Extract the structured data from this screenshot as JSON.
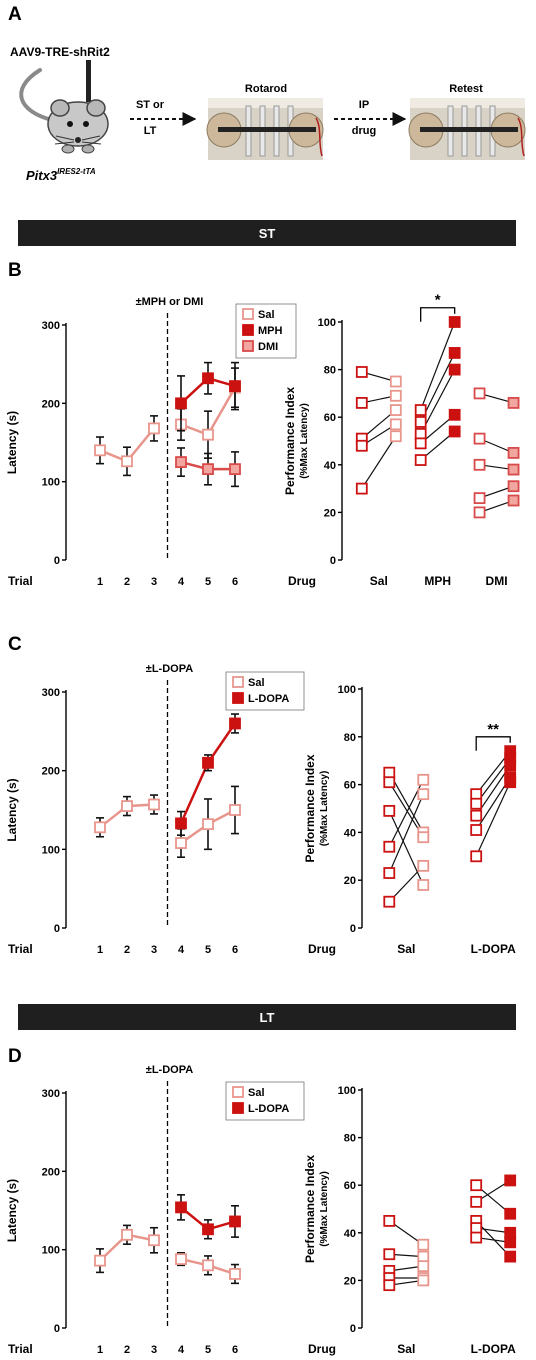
{
  "colors": {
    "sal": "#e8958c",
    "mph": "#cc1111",
    "dmi": "#d94a4a",
    "ldopa": "#cc1111",
    "bar": "#1f1f1f",
    "line": "#000000"
  },
  "panelA": {
    "letter": "A",
    "virus": "AAV9-TRE-shRit2",
    "mouse_line_main": "Pitx3",
    "mouse_line_sup": "IRES2-tTA",
    "arrow1_top": "ST or",
    "arrow1_bottom": "LT",
    "rotarod": "Rotarod",
    "arrow2_top": "IP",
    "arrow2_bottom": "drug",
    "retest": "Retest"
  },
  "bars": {
    "st": "ST",
    "lt": "LT"
  },
  "panels": [
    {
      "letter": "B",
      "latency": {
        "title": "±MPH or DMI",
        "ylabel": "Latency (s)",
        "xlabel": "Trial",
        "yticks": [
          "0",
          "100",
          "200",
          "300"
        ],
        "xticks": [
          "1",
          "2",
          "3",
          "4",
          "5",
          "6"
        ],
        "legend": [
          {
            "key": "sal",
            "label": "Sal",
            "fill": "open"
          },
          {
            "key": "mph",
            "label": "MPH",
            "fill": "solid"
          },
          {
            "key": "dmi",
            "label": "DMI",
            "fill": "light"
          }
        ]
      },
      "pi": {
        "ylabel1": "Performance Index",
        "ylabel2": "(%Max Latency)",
        "xlabel": "Drug",
        "yticks": [
          "0",
          "20",
          "40",
          "60",
          "80",
          "100"
        ],
        "groups": [
          "Sal",
          "MPH",
          "DMI"
        ],
        "sig": "*"
      }
    },
    {
      "letter": "C",
      "latency": {
        "title": "±L-DOPA",
        "ylabel": "Latency (s)",
        "xlabel": "Trial",
        "yticks": [
          "0",
          "100",
          "200",
          "300"
        ],
        "xticks": [
          "1",
          "2",
          "3",
          "4",
          "5",
          "6"
        ],
        "legend": [
          {
            "key": "sal",
            "label": "Sal",
            "fill": "open"
          },
          {
            "key": "ldopa",
            "label": "L-DOPA",
            "fill": "solid"
          }
        ]
      },
      "pi": {
        "ylabel1": "Performance Index",
        "ylabel2": "(%Max Latency)",
        "xlabel": "Drug",
        "yticks": [
          "0",
          "20",
          "40",
          "60",
          "80",
          "100"
        ],
        "groups": [
          "Sal",
          "L-DOPA"
        ],
        "sig": "**"
      }
    },
    {
      "letter": "D",
      "latency": {
        "title": "±L-DOPA",
        "ylabel": "Latency (s)",
        "xlabel": "Trial",
        "yticks": [
          "0",
          "100",
          "200",
          "300"
        ],
        "xticks": [
          "1",
          "2",
          "3",
          "4",
          "5",
          "6"
        ],
        "legend": [
          {
            "key": "sal",
            "label": "Sal",
            "fill": "open"
          },
          {
            "key": "ldopa",
            "label": "L-DOPA",
            "fill": "solid"
          }
        ]
      },
      "pi": {
        "ylabel1": "Performance Index",
        "ylabel2": "(%Max Latency)",
        "xlabel": "Drug",
        "yticks": [
          "0",
          "20",
          "40",
          "60",
          "80",
          "100"
        ],
        "groups": [
          "Sal",
          "L-DOPA"
        ],
        "sig": ""
      }
    }
  ],
  "chart_data": [
    {
      "type": "line",
      "panel": "B",
      "title": "±MPH or DMI",
      "xlabel": "Trial",
      "ylabel": "Latency (s)",
      "ylim": [
        0,
        300
      ],
      "x": [
        1,
        2,
        3,
        4,
        5,
        6
      ],
      "pre_test": {
        "x": [
          1,
          2,
          3
        ],
        "y": [
          140,
          126,
          168
        ],
        "err": [
          17,
          18,
          16
        ]
      },
      "series": [
        {
          "name": "Sal",
          "key": "sal",
          "x": [
            4,
            5,
            6
          ],
          "y": [
            173,
            160,
            220
          ],
          "err": [
            20,
            30,
            25
          ]
        },
        {
          "name": "MPH",
          "key": "mph",
          "x": [
            4,
            5,
            6
          ],
          "y": [
            200,
            232,
            222
          ],
          "err": [
            35,
            20,
            30
          ]
        },
        {
          "name": "DMI",
          "key": "dmi",
          "x": [
            4,
            5,
            6
          ],
          "y": [
            125,
            116,
            116
          ],
          "err": [
            18,
            20,
            22
          ]
        }
      ]
    },
    {
      "type": "scatter",
      "panel": "B",
      "xlabel": "Drug",
      "ylabel": "Performance Index (%Max Latency)",
      "ylim": [
        0,
        100
      ],
      "categories": [
        "Sal",
        "MPH",
        "DMI"
      ],
      "paired": [
        {
          "name": "Sal",
          "key": "sal",
          "pre": [
            79,
            66,
            51,
            48,
            30
          ],
          "post": [
            75,
            69,
            63,
            57,
            52
          ]
        },
        {
          "name": "MPH",
          "key": "mph",
          "pre": [
            63,
            58,
            53,
            49,
            42
          ],
          "post": [
            100,
            87,
            80,
            61,
            54
          ]
        },
        {
          "name": "DMI",
          "key": "dmi",
          "pre": [
            70,
            51,
            40,
            26,
            20
          ],
          "post": [
            66,
            45,
            38,
            31,
            25
          ]
        }
      ]
    },
    {
      "type": "line",
      "panel": "C",
      "title": "±L-DOPA",
      "xlabel": "Trial",
      "ylabel": "Latency (s)",
      "ylim": [
        0,
        300
      ],
      "x": [
        1,
        2,
        3,
        4,
        5,
        6
      ],
      "pre_test": {
        "x": [
          1,
          2,
          3
        ],
        "y": [
          128,
          155,
          157
        ],
        "err": [
          12,
          12,
          12
        ]
      },
      "series": [
        {
          "name": "Sal",
          "key": "sal",
          "x": [
            4,
            5,
            6
          ],
          "y": [
            108,
            132,
            150
          ],
          "err": [
            18,
            32,
            30
          ]
        },
        {
          "name": "L-DOPA",
          "key": "ldopa",
          "x": [
            4,
            5,
            6
          ],
          "y": [
            133,
            210,
            260
          ],
          "err": [
            15,
            10,
            12
          ]
        }
      ]
    },
    {
      "type": "scatter",
      "panel": "C",
      "xlabel": "Drug",
      "ylabel": "Performance Index (%Max Latency)",
      "ylim": [
        0,
        100
      ],
      "categories": [
        "Sal",
        "L-DOPA"
      ],
      "paired": [
        {
          "name": "Sal",
          "key": "sal",
          "pre": [
            65,
            61,
            49,
            34,
            23,
            11
          ],
          "post": [
            62,
            56,
            40,
            38,
            26,
            18
          ]
        },
        {
          "name": "L-DOPA",
          "key": "ldopa",
          "pre": [
            56,
            52,
            47,
            41,
            30
          ],
          "post": [
            74,
            71,
            68,
            63,
            61
          ]
        }
      ]
    },
    {
      "type": "line",
      "panel": "D",
      "title": "±L-DOPA",
      "xlabel": "Trial",
      "ylabel": "Latency (s)",
      "ylim": [
        0,
        300
      ],
      "x": [
        1,
        2,
        3,
        4,
        5,
        6
      ],
      "pre_test": {
        "x": [
          1,
          2,
          3
        ],
        "y": [
          86,
          119,
          112
        ],
        "err": [
          15,
          12,
          16
        ]
      },
      "series": [
        {
          "name": "Sal",
          "key": "sal",
          "x": [
            4,
            5,
            6
          ],
          "y": [
            88,
            80,
            69
          ],
          "err": [
            8,
            12,
            12
          ]
        },
        {
          "name": "L-DOPA",
          "key": "ldopa",
          "x": [
            4,
            5,
            6
          ],
          "y": [
            154,
            126,
            136
          ],
          "err": [
            16,
            12,
            20
          ]
        }
      ]
    },
    {
      "type": "scatter",
      "panel": "D",
      "xlabel": "Drug",
      "ylabel": "Performance Index (%Max Latency)",
      "ylim": [
        0,
        100
      ],
      "categories": [
        "Sal",
        "L-DOPA"
      ],
      "paired": [
        {
          "name": "Sal",
          "key": "sal",
          "pre": [
            45,
            31,
            24,
            21,
            18
          ],
          "post": [
            35,
            30,
            26,
            21,
            20
          ]
        },
        {
          "name": "L-DOPA",
          "key": "ldopa",
          "pre": [
            60,
            53,
            45,
            42,
            38
          ],
          "post": [
            62,
            48,
            40,
            36,
            30
          ]
        }
      ]
    }
  ]
}
